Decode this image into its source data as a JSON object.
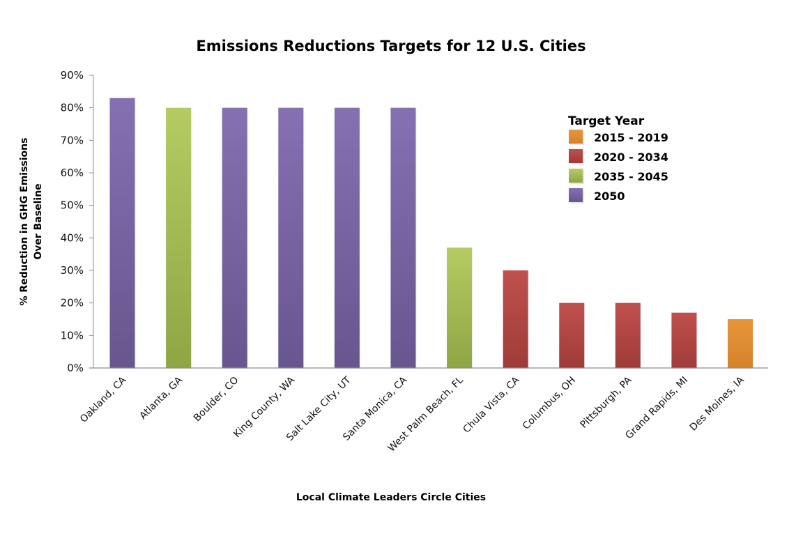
{
  "chart_data": {
    "type": "bar",
    "title": "Emissions Reductions Targets for 12 U.S. Cities",
    "xlabel": "Local Climate Leaders Circle Cities",
    "ylabel_lines": [
      "% Reduction in GHG Emissions",
      "Over Baseline"
    ],
    "ylabel": "% Reduction in GHG Emissions Over Baseline",
    "ylim": [
      0,
      90
    ],
    "yticks": [
      0,
      10,
      20,
      30,
      40,
      50,
      60,
      70,
      80,
      90
    ],
    "ytick_labels": [
      "0%",
      "10%",
      "20%",
      "30%",
      "40%",
      "50%",
      "60%",
      "70%",
      "80%",
      "90%"
    ],
    "grid": false,
    "legend_placement": "right",
    "categories": [
      "Oakland, CA",
      "Atlanta, GA",
      "Boulder, CO",
      "King County, WA",
      "Salt Lake City, UT",
      "Santa Monica, CA",
      "West Palm Beach, FL",
      "Chula Vista, CA",
      "Columbus, OH",
      "Pittsburgh, PA",
      "Grand Rapids, MI",
      "Des Moines, IA"
    ],
    "values": [
      83,
      80,
      80,
      80,
      80,
      80,
      37,
      30,
      20,
      20,
      17,
      15
    ],
    "target_year_group": [
      "2050",
      "2035 - 2045",
      "2050",
      "2050",
      "2050",
      "2050",
      "2035 - 2045",
      "2020 - 2034",
      "2020 - 2034",
      "2020 - 2034",
      "2020 - 2034",
      "2015 - 2019"
    ],
    "legend": {
      "title": "Target Year",
      "entries": [
        {
          "label": "2015 - 2019",
          "color": "#E8963A",
          "color_dark": "#D5822A"
        },
        {
          "label": "2020 - 2034",
          "color": "#C0504D",
          "color_dark": "#9E3C39"
        },
        {
          "label": "2035 - 2045",
          "color": "#B5CB62",
          "color_dark": "#8FA645"
        },
        {
          "label": "2050",
          "color": "#8570B2",
          "color_dark": "#68568F"
        }
      ]
    }
  }
}
